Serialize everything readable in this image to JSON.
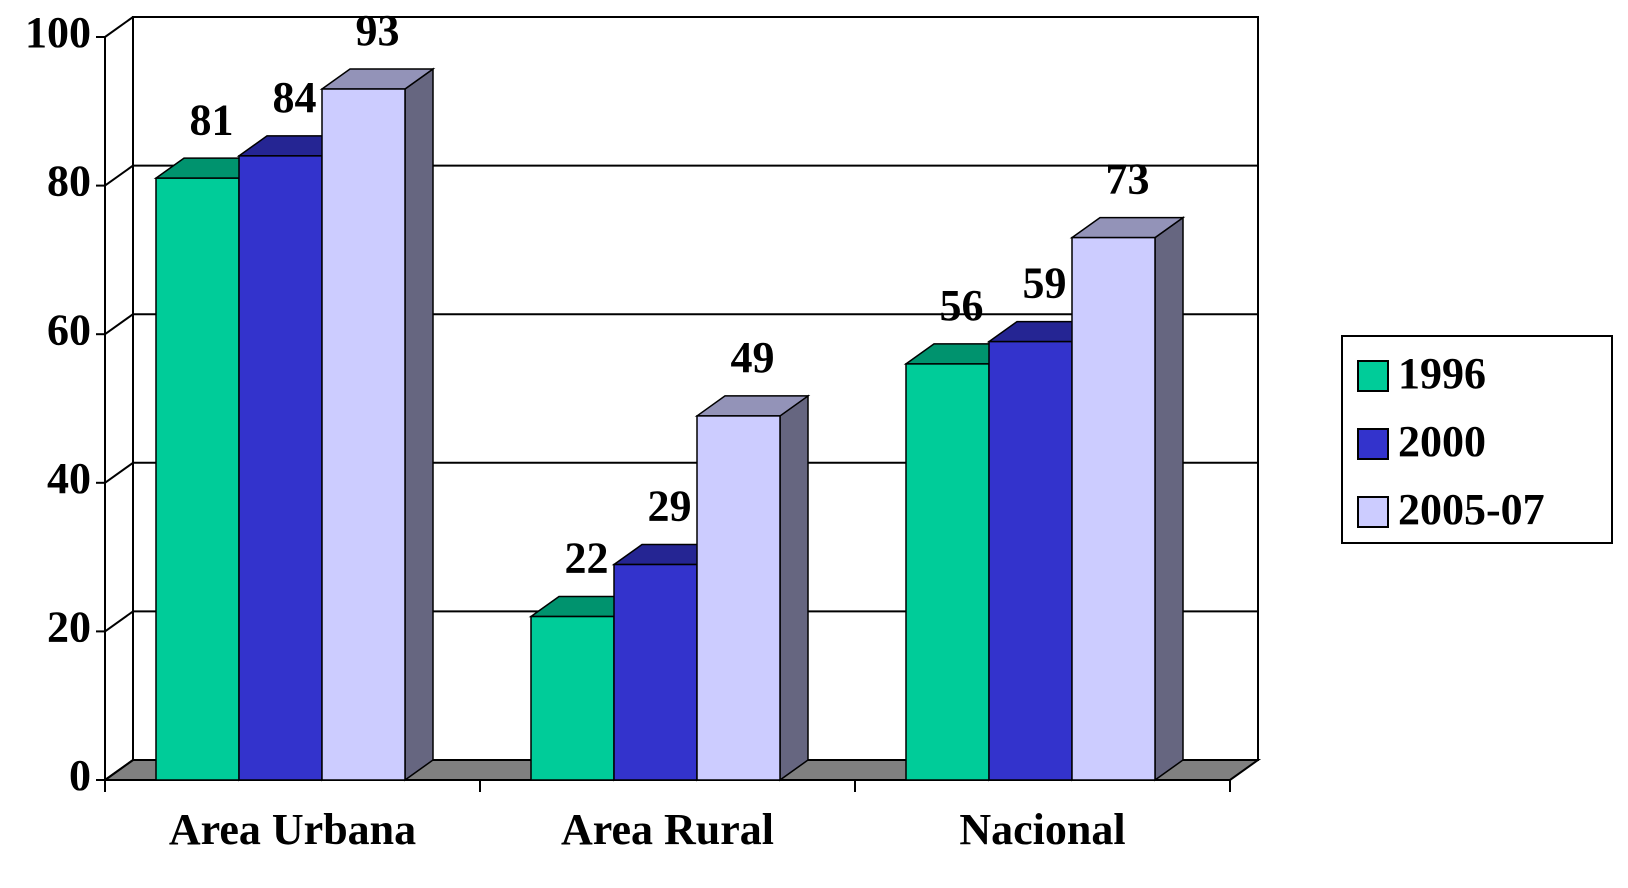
{
  "chart_data": {
    "type": "bar3d",
    "categories": [
      "Area Urbana",
      "Area Rural",
      "Nacional"
    ],
    "series": [
      {
        "name": "1996",
        "color": "#00CC99",
        "values": [
          81,
          22,
          56
        ]
      },
      {
        "name": "2000",
        "color": "#3333CC",
        "values": [
          84,
          29,
          59
        ]
      },
      {
        "name": "2005-07",
        "color": "#CCCCFF",
        "values": [
          93,
          49,
          73
        ]
      }
    ],
    "ylim": [
      0,
      100
    ],
    "yticks": [
      0,
      20,
      40,
      60,
      80,
      100
    ],
    "grid": true,
    "legend": "right"
  }
}
